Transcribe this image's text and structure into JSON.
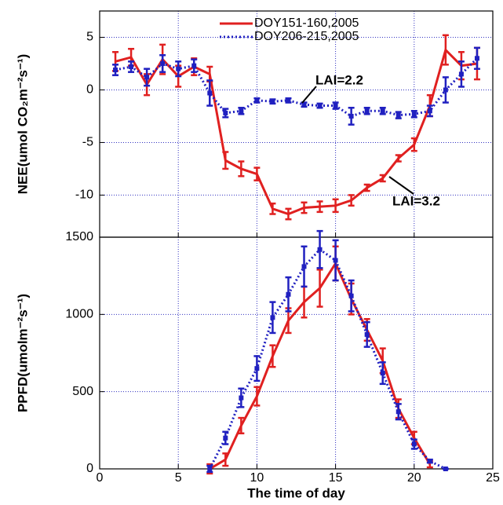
{
  "chart_data": [
    {
      "type": "line",
      "ylabel": "NEE(umol CO₂m⁻²s⁻¹)",
      "xlim": [
        0,
        25
      ],
      "xticks": [
        0,
        5,
        10,
        15,
        20,
        25
      ],
      "ylim": [
        -14,
        7.5
      ],
      "yticks": [
        -10,
        -5,
        0,
        5
      ],
      "grid": true,
      "legend": "top",
      "series": [
        {
          "name": "DOY151-160,2005",
          "color": "#e02020",
          "style": "solid",
          "x": [
            1,
            2,
            3,
            4,
            5,
            6,
            7,
            8,
            9,
            10,
            11,
            12,
            13,
            14,
            15,
            16,
            17,
            18,
            19,
            20,
            21,
            22,
            23,
            24
          ],
          "values": [
            2.7,
            3.1,
            0.5,
            2.9,
            1.3,
            2.2,
            1.5,
            -6.7,
            -7.5,
            -8,
            -11.3,
            -11.8,
            -11.2,
            -11.1,
            -11,
            -10.5,
            -9.3,
            -8.4,
            -6.5,
            -5.2,
            -1.5,
            3.8,
            2.3,
            2.5
          ],
          "errors": [
            0.9,
            0.8,
            1.0,
            1.4,
            1.0,
            0.8,
            0.7,
            0.8,
            0.7,
            0.6,
            0.5,
            0.5,
            0.5,
            0.5,
            0.6,
            0.5,
            0.3,
            0.3,
            0.3,
            0.6,
            1.0,
            1.4,
            1.3,
            1.5
          ]
        },
        {
          "name": "DOY206-215,2005",
          "color": "#2020c0",
          "style": "dotted",
          "x": [
            1,
            2,
            3,
            4,
            5,
            6,
            7,
            8,
            9,
            10,
            11,
            12,
            13,
            14,
            15,
            16,
            17,
            18,
            19,
            20,
            21,
            22,
            23,
            24
          ],
          "values": [
            1.9,
            2.2,
            1.2,
            2.5,
            2.0,
            2.3,
            -0.3,
            -2.2,
            -2.0,
            -1.0,
            -1.1,
            -1.0,
            -1.4,
            -1.5,
            -1.5,
            -2.5,
            -2.0,
            -2.0,
            -2.4,
            -2.3,
            -2.0,
            0,
            1.5,
            3.0
          ],
          "errors": [
            0.5,
            0.5,
            0.8,
            0.8,
            0.7,
            0.6,
            1.2,
            0.4,
            0.3,
            0.2,
            0.2,
            0.2,
            0.2,
            0.2,
            0.3,
            0.8,
            0.3,
            0.3,
            0.3,
            0.3,
            0.5,
            1.2,
            1.2,
            1.0
          ]
        }
      ],
      "annotations": [
        {
          "text": "LAI=2.2",
          "color": "#2020c0"
        },
        {
          "text": "LAI=3.2",
          "color": "#e02020"
        }
      ]
    },
    {
      "type": "line",
      "ylabel": "PPFD(umolm⁻²s⁻¹)",
      "xlabel": "The time of day",
      "xlim": [
        0,
        25
      ],
      "xticks": [
        0,
        5,
        10,
        15,
        20,
        25
      ],
      "ylim": [
        0,
        1500
      ],
      "yticks": [
        0,
        500,
        1000,
        1500
      ],
      "grid": true,
      "series": [
        {
          "color": "#e02020",
          "style": "solid",
          "x": [
            7,
            8,
            9,
            10,
            11,
            12,
            13,
            14,
            15,
            16,
            17,
            18,
            19,
            20,
            21
          ],
          "values": [
            0,
            60,
            280,
            470,
            730,
            960,
            1080,
            1170,
            1330,
            1100,
            900,
            700,
            390,
            200,
            30
          ],
          "errors": [
            30,
            40,
            50,
            60,
            70,
            80,
            100,
            120,
            110,
            100,
            70,
            80,
            60,
            40,
            20
          ]
        },
        {
          "color": "#2020c0",
          "style": "dotted",
          "x": [
            7,
            8,
            9,
            10,
            11,
            12,
            13,
            14,
            15,
            16,
            17,
            18,
            19,
            20,
            21,
            22
          ],
          "values": [
            0,
            200,
            460,
            650,
            980,
            1130,
            1310,
            1420,
            1350,
            1120,
            870,
            620,
            370,
            160,
            50,
            0
          ],
          "errors": [
            20,
            40,
            60,
            80,
            100,
            110,
            130,
            120,
            130,
            100,
            80,
            70,
            50,
            30,
            10,
            0
          ]
        }
      ]
    }
  ]
}
